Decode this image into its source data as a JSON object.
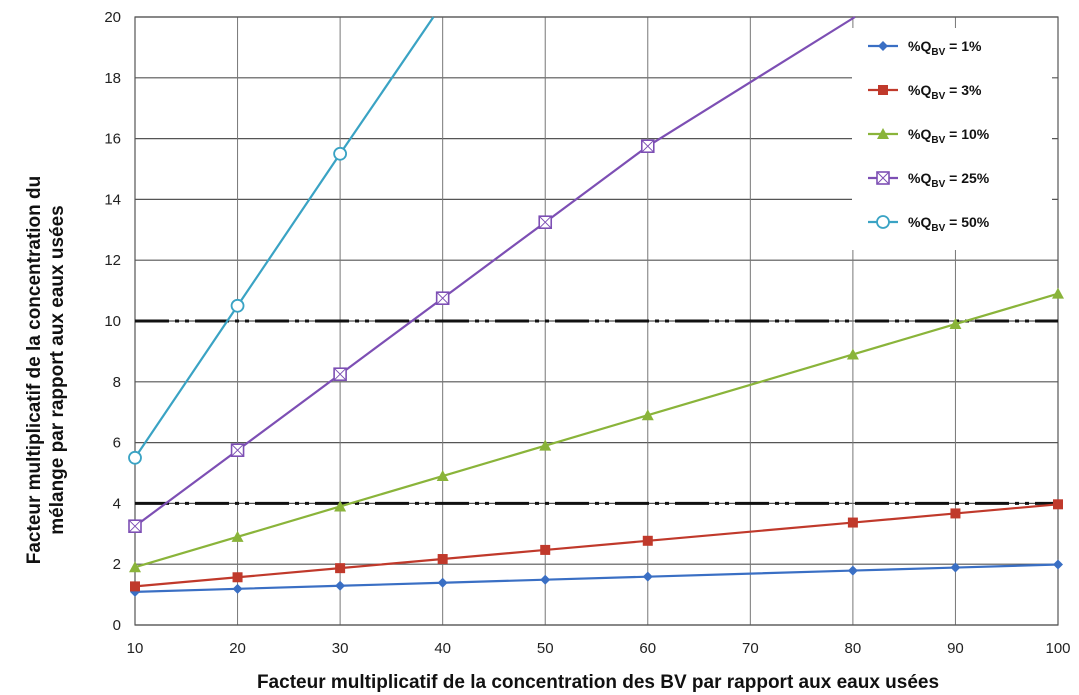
{
  "chart_data": {
    "type": "line",
    "xlabel": "Facteur multiplicatif de la concentration des BV par rapport aux eaux usées",
    "ylabel_lines": [
      "Facteur multiplicatif de la concentration du",
      "mélange par rapport aux eaux usées"
    ],
    "xlim": [
      10,
      100
    ],
    "ylim": [
      0,
      20
    ],
    "x_ticks": [
      "10",
      "20",
      "30",
      "40",
      "50",
      "60",
      "70",
      "80",
      "90",
      "100"
    ],
    "y_ticks": [
      "0",
      "2",
      "4",
      "6",
      "8",
      "10",
      "12",
      "14",
      "16",
      "18",
      "20"
    ],
    "grid": "horizontal and vertical",
    "legend_position": "top-right",
    "reference_lines": [
      4,
      10
    ],
    "series": [
      {
        "name": "%Q",
        "name_sub": "BV",
        "name_suffix": " = 1%",
        "color": "#3a6fc4",
        "marker": "diamond",
        "x": [
          10,
          20,
          30,
          40,
          50,
          60,
          80,
          90,
          100
        ],
        "y": [
          1.09,
          1.19,
          1.29,
          1.39,
          1.49,
          1.59,
          1.79,
          1.89,
          1.99
        ]
      },
      {
        "name": "%Q",
        "name_sub": "BV",
        "name_suffix": " = 3%",
        "color": "#c0392b",
        "marker": "square",
        "x": [
          10,
          20,
          30,
          40,
          50,
          60,
          80,
          90,
          100
        ],
        "y": [
          1.27,
          1.57,
          1.87,
          2.17,
          2.47,
          2.77,
          3.37,
          3.67,
          3.97
        ]
      },
      {
        "name": "%Q",
        "name_sub": "BV",
        "name_suffix": " = 10%",
        "color": "#8ab43a",
        "marker": "triangle",
        "x": [
          10,
          20,
          30,
          40,
          50,
          60,
          80,
          90,
          100
        ],
        "y": [
          1.9,
          2.9,
          3.9,
          4.9,
          5.9,
          6.9,
          8.9,
          9.9,
          10.9
        ]
      },
      {
        "name": "%Q",
        "name_sub": "BV",
        "name_suffix": " = 25%",
        "color": "#7d4fb4",
        "marker": "square-x",
        "x": [
          10,
          20,
          30,
          40,
          50,
          60,
          80.2
        ],
        "y": [
          3.25,
          5.75,
          8.25,
          10.75,
          13.25,
          15.75,
          20
        ]
      },
      {
        "name": "%Q",
        "name_sub": "BV",
        "name_suffix": " = 50%",
        "color": "#3aa3c4",
        "marker": "circle",
        "x": [
          10,
          20,
          30,
          39.1
        ],
        "y": [
          5.5,
          10.5,
          15.5,
          20
        ]
      }
    ]
  }
}
